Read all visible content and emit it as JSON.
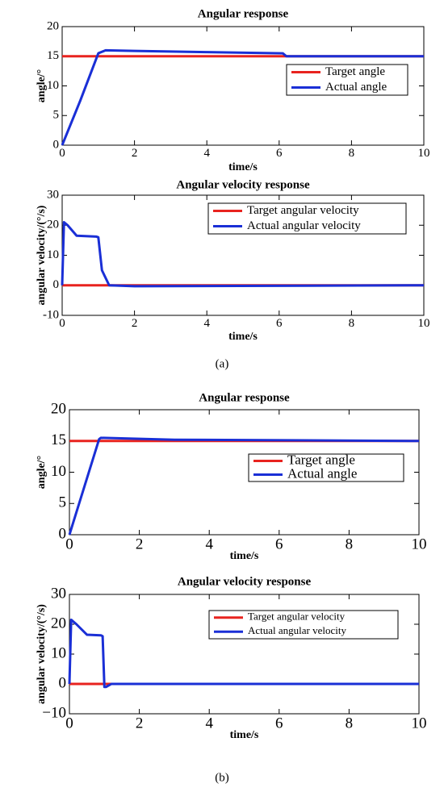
{
  "chart_data": [
    {
      "type": "line",
      "title": "Angular response",
      "xlabel": "time/s",
      "ylabel": "angle/°",
      "xlim": [
        0,
        10
      ],
      "ylim": [
        0,
        20
      ],
      "xticks": [
        0,
        2,
        4,
        6,
        8,
        10
      ],
      "yticks": [
        0,
        5,
        10,
        15,
        20
      ],
      "legend": "right",
      "series": [
        {
          "name": "Target angle",
          "color": "#e8231f",
          "x": [
            0,
            10
          ],
          "values": [
            15,
            15
          ]
        },
        {
          "name": "Actual angle",
          "color": "#1a2fd6",
          "x": [
            0,
            0.5,
            1,
            1.2,
            2,
            4,
            6.1,
            6.2,
            10
          ],
          "values": [
            0,
            7.5,
            15.5,
            16,
            15.9,
            15.7,
            15.5,
            15,
            15
          ]
        }
      ]
    },
    {
      "type": "line",
      "title": "Angular velocity response",
      "xlabel": "time/s",
      "ylabel": "angular velocity/(°/s)",
      "xlim": [
        0,
        10
      ],
      "ylim": [
        -10,
        30
      ],
      "xticks": [
        0,
        2,
        4,
        6,
        8,
        10
      ],
      "yticks": [
        -10,
        0,
        10,
        20,
        30
      ],
      "legend": "upper right",
      "series": [
        {
          "name": "Target angular velocity",
          "color": "#e8231f",
          "x": [
            0,
            10
          ],
          "values": [
            0,
            0
          ]
        },
        {
          "name": "Actual angular velocity",
          "color": "#1a2fd6",
          "x": [
            0,
            0.05,
            0.15,
            0.4,
            0.95,
            1.0,
            1.1,
            1.3,
            2,
            10
          ],
          "values": [
            0,
            21,
            20,
            16.5,
            16.2,
            16,
            5,
            0,
            -0.3,
            0
          ]
        }
      ]
    },
    {
      "type": "line",
      "title": "Angular response",
      "xlabel": "time/s",
      "ylabel": "angle/°",
      "xlim": [
        0,
        10
      ],
      "ylim": [
        0,
        20
      ],
      "xticks": [
        0,
        2,
        4,
        6,
        8,
        10
      ],
      "yticks": [
        0,
        5,
        10,
        15,
        20
      ],
      "legend": "right",
      "series": [
        {
          "name": "Target angle",
          "color": "#e8231f",
          "x": [
            0,
            10
          ],
          "values": [
            15,
            15
          ]
        },
        {
          "name": "Actual angle",
          "color": "#1a2fd6",
          "x": [
            0,
            0.85,
            0.9,
            3,
            10
          ],
          "values": [
            0,
            15.3,
            15.5,
            15.2,
            15
          ]
        }
      ]
    },
    {
      "type": "line",
      "title": "Angular velocity response",
      "xlabel": "time/s",
      "ylabel": "angular velocity/(°/s)",
      "xlim": [
        0,
        10
      ],
      "ylim": [
        -10,
        30
      ],
      "xticks": [
        0,
        2,
        4,
        6,
        8,
        10
      ],
      "yticks": [
        {
          "value": -10,
          "label": "−10"
        },
        0,
        10,
        20,
        30
      ],
      "legend": "upper right",
      "series": [
        {
          "name": "Target angular velocity",
          "color": "#e8231f",
          "x": [
            0,
            10
          ],
          "values": [
            0,
            0
          ]
        },
        {
          "name": "Actual angular velocity",
          "color": "#1a2fd6",
          "x": [
            0,
            0.05,
            0.2,
            0.5,
            0.9,
            0.95,
            1.0,
            1.05,
            1.2,
            10
          ],
          "values": [
            0,
            21.5,
            20,
            16.5,
            16.3,
            16,
            -1,
            -1,
            0,
            0
          ]
        }
      ]
    }
  ],
  "panel_labels": [
    "(a)",
    "(b)"
  ]
}
